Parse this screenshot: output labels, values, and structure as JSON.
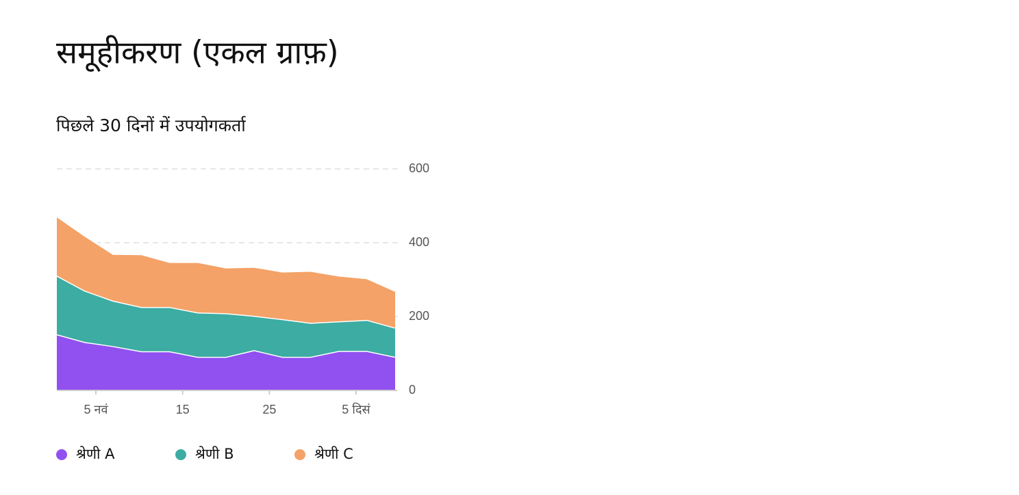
{
  "chart_data": {
    "type": "stacked_area",
    "title": "समूहीकरण (एकल ग्राफ़)",
    "subtitle": "पिछले 30 दिनों में उपयोगकर्ता",
    "x": [
      0.5,
      3.75,
      7,
      10.25,
      13.5,
      16.75,
      20,
      23.25,
      26.5,
      29.75,
      33,
      36.25,
      39.5
    ],
    "xlim": [
      0.5,
      39.5
    ],
    "xticks": [
      {
        "value": 5,
        "label": "5 नवं"
      },
      {
        "value": 15,
        "label": "15"
      },
      {
        "value": 25,
        "label": "25"
      },
      {
        "value": 35,
        "label": "5 दिसं"
      }
    ],
    "ylim": [
      0,
      600
    ],
    "yticks": [
      0,
      200,
      400,
      600
    ],
    "grid": true,
    "series": [
      {
        "name": "श्रेणी A",
        "color": "#9150f0",
        "values": [
          152,
          131,
          120,
          106,
          106,
          91,
          91,
          109,
          91,
          91,
          107,
          107,
          91
        ]
      },
      {
        "name": "श्रेणी B",
        "color": "#3daca2",
        "values": [
          159,
          139,
          123,
          120,
          120,
          120,
          118,
          93,
          102,
          92,
          80,
          84,
          79
        ]
      },
      {
        "name": "श्रेणी C",
        "color": "#f4a267",
        "values": [
          161,
          149,
          127,
          143,
          122,
          137,
          124,
          133,
          129,
          141,
          124,
          113,
          100
        ]
      }
    ]
  }
}
